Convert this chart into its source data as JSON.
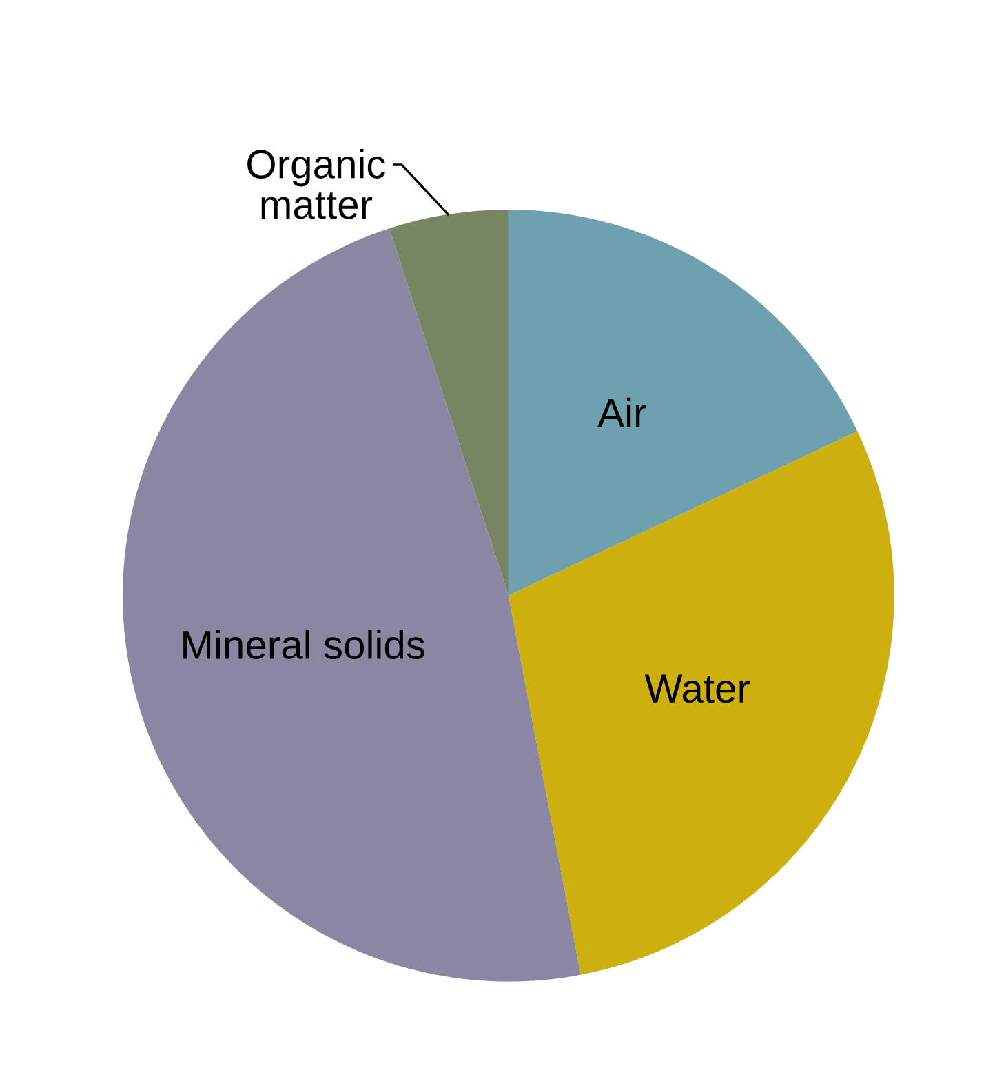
{
  "chart_data": {
    "type": "pie",
    "categories": [
      "Air",
      "Water",
      "Mineral solids",
      "Organic\nmatter"
    ],
    "values": [
      18,
      29,
      48,
      5
    ],
    "colors": [
      "#6fa0b0",
      "#cdb00d",
      "#8b87a3",
      "#788562"
    ],
    "legend": false
  }
}
